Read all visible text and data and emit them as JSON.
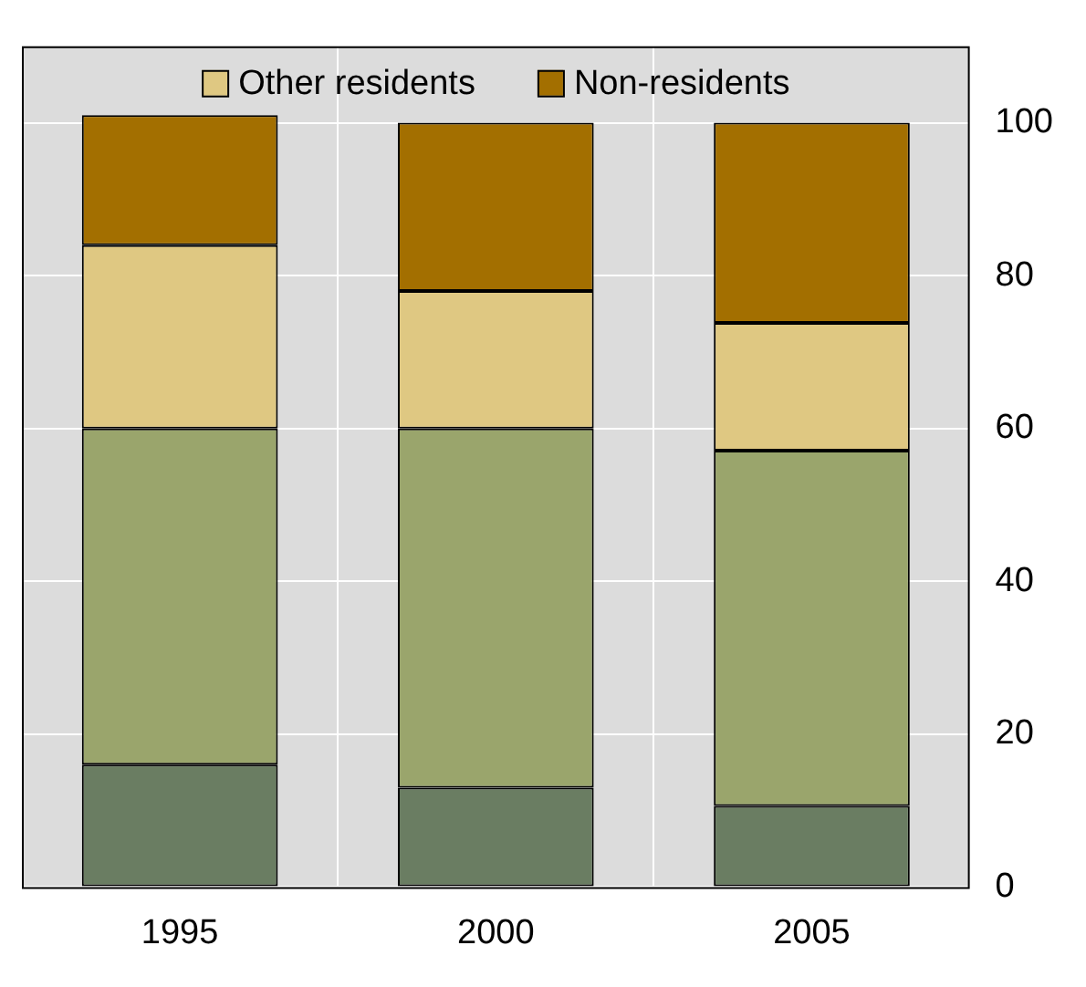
{
  "chart_data": {
    "type": "bar",
    "stacked": true,
    "categories": [
      "1995",
      "2000",
      "2005"
    ],
    "series": [
      {
        "color": "#6a7d62",
        "values": [
          16,
          13,
          10.6
        ]
      },
      {
        "color": "#9aa56c",
        "values": [
          44,
          47,
          46.5
        ]
      },
      {
        "name": "Other residents",
        "color": "#dfc882",
        "values": [
          24,
          18,
          16.7
        ]
      },
      {
        "name": "Non-residents",
        "color": "#a36f00",
        "values": [
          17,
          22,
          26.2
        ]
      }
    ],
    "ylim": [
      0,
      110
    ],
    "yticks": [
      0,
      20,
      40,
      60,
      80,
      100
    ],
    "grid": true,
    "legend": "top"
  }
}
